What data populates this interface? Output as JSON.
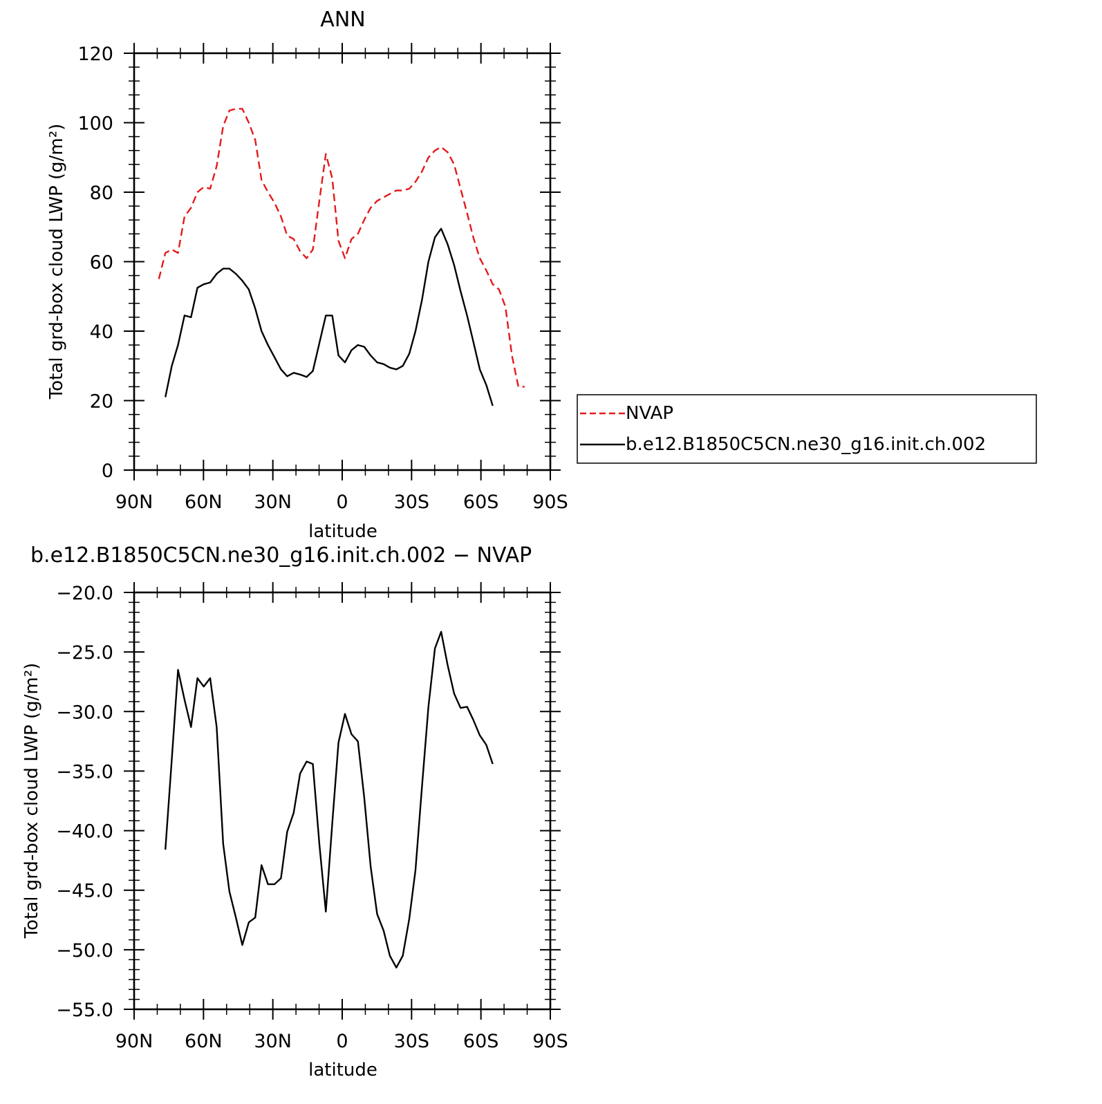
{
  "chart_data": [
    {
      "type": "line",
      "title": "ANN",
      "xlabel": "latitude",
      "ylabel": "Total grd-box cloud LWP (g/m²)",
      "xlim": [
        90,
        -90
      ],
      "ylim": [
        0,
        120
      ],
      "xticks": [
        90,
        60,
        30,
        0,
        -30,
        -60,
        -90
      ],
      "xtick_labels": [
        "90N",
        "60N",
        "30N",
        "0",
        "30S",
        "60S",
        "90S"
      ],
      "yticks": [
        0,
        20,
        40,
        60,
        80,
        100,
        120
      ],
      "ytick_labels": [
        "0",
        "20",
        "40",
        "60",
        "80",
        "100",
        "120"
      ],
      "legend_position": "right",
      "series": [
        {
          "name": "NVAP",
          "color": "#e31a1c",
          "dash": "dashed",
          "x": [
            79.3,
            76.5,
            73.7,
            71.0,
            68.2,
            65.4,
            62.6,
            59.9,
            57.1,
            54.3,
            51.5,
            48.8,
            46.0,
            43.2,
            40.4,
            37.6,
            34.9,
            32.1,
            29.3,
            26.5,
            23.8,
            21.0,
            18.2,
            15.4,
            12.7,
            9.9,
            7.1,
            4.3,
            1.6,
            -1.2,
            -4.0,
            -6.8,
            -9.5,
            -12.3,
            -15.1,
            -17.9,
            -20.6,
            -23.4,
            -26.2,
            -29.0,
            -31.7,
            -34.5,
            -37.3,
            -40.1,
            -42.8,
            -45.6,
            -48.4,
            -51.2,
            -54.0,
            -56.7,
            -59.5,
            -62.3,
            -65.1,
            -67.8,
            -70.6,
            -73.4,
            -76.2,
            -78.9
          ],
          "values": [
            55.0,
            62.5,
            63.5,
            62.5,
            73.0,
            75.5,
            80.0,
            81.5,
            81.0,
            87.5,
            99.0,
            103.5,
            104.0,
            104.0,
            100.0,
            95.0,
            83.5,
            80.0,
            77.0,
            73.0,
            67.5,
            66.5,
            63.0,
            61.0,
            63.5,
            77.5,
            91.0,
            84.0,
            66.0,
            61.0,
            66.5,
            68.0,
            72.0,
            75.5,
            77.5,
            78.5,
            79.5,
            80.5,
            80.5,
            81.0,
            83.0,
            86.0,
            90.0,
            92.0,
            93.0,
            91.5,
            88.0,
            81.0,
            74.0,
            67.0,
            61.0,
            57.5,
            53.5,
            52.0,
            47.0,
            33.0,
            24.0,
            24.0
          ]
        },
        {
          "name": "b.e12.B1850C5CN.ne30_g16.init.ch.002",
          "color": "#000000",
          "dash": "solid",
          "x": [
            76.5,
            73.7,
            71.0,
            68.2,
            65.4,
            62.6,
            59.9,
            57.1,
            54.3,
            51.5,
            48.8,
            46.0,
            43.2,
            40.4,
            37.6,
            34.9,
            32.1,
            29.3,
            26.5,
            23.8,
            21.0,
            18.2,
            15.4,
            12.7,
            9.9,
            7.1,
            4.3,
            1.6,
            -1.2,
            -4.0,
            -6.8,
            -9.5,
            -12.3,
            -15.1,
            -17.9,
            -20.6,
            -23.4,
            -26.2,
            -29.0,
            -31.7,
            -34.5,
            -37.3,
            -40.1,
            -42.8,
            -45.6,
            -48.4,
            -51.2,
            -54.0,
            -56.7,
            -59.5,
            -62.3,
            -65.1
          ],
          "values": [
            21.0,
            30.0,
            36.0,
            44.5,
            44.0,
            52.5,
            53.5,
            54.0,
            56.5,
            58.0,
            58.0,
            56.5,
            54.5,
            52.0,
            46.5,
            40.0,
            36.0,
            32.5,
            29.0,
            27.0,
            28.0,
            27.5,
            26.8,
            28.5,
            36.5,
            44.5,
            44.5,
            33.0,
            31.0,
            34.5,
            36.0,
            35.5,
            33.0,
            31.0,
            30.5,
            29.5,
            29.0,
            30.0,
            33.5,
            40.0,
            49.0,
            60.0,
            67.0,
            69.5,
            65.0,
            59.0,
            51.5,
            44.5,
            37.0,
            29.0,
            24.5,
            18.5
          ]
        }
      ]
    },
    {
      "type": "line",
      "title": "b.e12.B1850C5CN.ne30_g16.init.ch.002 − NVAP",
      "xlabel": "latitude",
      "ylabel": "Total grd-box cloud LWP (g/m²)",
      "xlim": [
        90,
        -90
      ],
      "ylim": [
        -55,
        -20
      ],
      "xticks": [
        90,
        60,
        30,
        0,
        -30,
        -60,
        -90
      ],
      "xtick_labels": [
        "90N",
        "60N",
        "30N",
        "0",
        "30S",
        "60S",
        "90S"
      ],
      "yticks": [
        -55,
        -50,
        -45,
        -40,
        -35,
        -30,
        -25,
        -20
      ],
      "ytick_labels": [
        "−55.0",
        "−50.0",
        "−45.0",
        "−40.0",
        "−35.0",
        "−30.0",
        "−25.0",
        "−20.0"
      ],
      "series": [
        {
          "color": "#000000",
          "dash": "solid",
          "x": [
            76.5,
            73.7,
            71.0,
            68.2,
            65.4,
            62.6,
            59.9,
            57.1,
            54.3,
            51.5,
            48.8,
            46.0,
            43.2,
            40.4,
            37.6,
            34.9,
            32.1,
            29.3,
            26.5,
            23.8,
            21.0,
            18.2,
            15.4,
            12.7,
            9.9,
            7.1,
            4.3,
            1.6,
            -1.2,
            -4.0,
            -6.8,
            -9.5,
            -12.3,
            -15.1,
            -17.9,
            -20.6,
            -23.4,
            -26.2,
            -29.0,
            -31.7,
            -34.5,
            -37.3,
            -40.1,
            -42.8,
            -45.6,
            -48.4,
            -51.2,
            -54.0,
            -56.7,
            -59.5,
            -62.3,
            -65.1
          ],
          "values": [
            -41.6,
            -34.0,
            -26.5,
            -29.0,
            -31.3,
            -27.2,
            -27.9,
            -27.2,
            -31.3,
            -41.1,
            -45.1,
            -47.3,
            -49.6,
            -47.7,
            -47.3,
            -42.9,
            -44.5,
            -44.5,
            -44.0,
            -40.1,
            -38.5,
            -35.2,
            -34.2,
            -34.4,
            -41.1,
            -46.8,
            -39.4,
            -32.6,
            -30.2,
            -31.9,
            -32.5,
            -37.2,
            -43.0,
            -47.0,
            -48.4,
            -50.5,
            -51.5,
            -50.5,
            -47.4,
            -43.3,
            -36.3,
            -29.6,
            -24.7,
            -23.3,
            -26.1,
            -28.5,
            -29.7,
            -29.6,
            -30.7,
            -32.0,
            -32.8,
            -34.4
          ]
        }
      ]
    }
  ]
}
